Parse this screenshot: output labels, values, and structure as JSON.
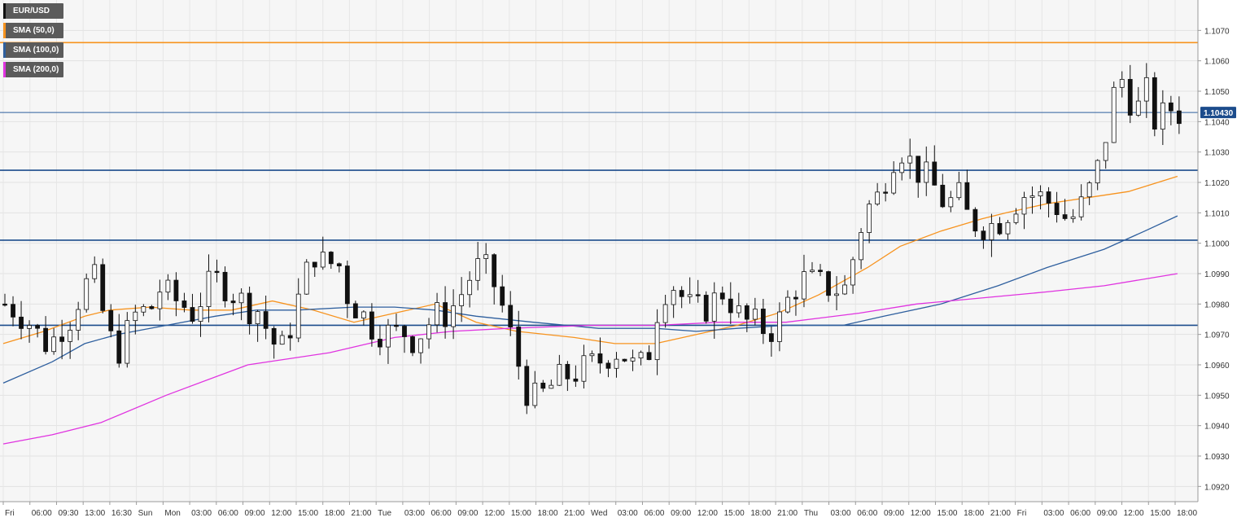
{
  "chart_data": {
    "type": "candlestick",
    "symbol": "EUR/USD",
    "ylim": [
      1.0915,
      1.108
    ],
    "y_ticks": [
      "1.1070",
      "1.1060",
      "1.1050",
      "1.1040",
      "1.1030",
      "1.1020",
      "1.1010",
      "1.1000",
      "1.0990",
      "1.0980",
      "1.0970",
      "1.0960",
      "1.0950",
      "1.0940",
      "1.0930",
      "1.0920"
    ],
    "x_ticks": [
      "Fri",
      "06:00",
      "09:30",
      "13:00",
      "16:30",
      "Sun",
      "Mon",
      "03:00",
      "06:00",
      "09:00",
      "12:00",
      "15:00",
      "18:00",
      "21:00",
      "Tue",
      "03:00",
      "06:00",
      "09:00",
      "12:00",
      "15:00",
      "18:00",
      "21:00",
      "Wed",
      "03:00",
      "06:00",
      "09:00",
      "12:00",
      "15:00",
      "18:00",
      "21:00",
      "Thu",
      "03:00",
      "06:00",
      "09:00",
      "12:00",
      "15:00",
      "18:00",
      "21:00",
      "Fri",
      "03:00",
      "06:00",
      "09:00",
      "12:00",
      "15:00",
      "18:00"
    ],
    "last_price": "1.10430",
    "last_price_value": 1.1043,
    "horizontal_levels": [
      {
        "value": 1.1066,
        "color": "#f7931e"
      },
      {
        "value": 1.1024,
        "color": "#1c4c8c"
      },
      {
        "value": 1.1001,
        "color": "#1c4c8c"
      },
      {
        "value": 1.0973,
        "color": "#1c4c8c"
      }
    ],
    "close_path": [
      1.098,
      1.0978,
      1.0975,
      1.097,
      1.0966,
      1.0972,
      1.0976,
      1.0985,
      1.0989,
      1.0975,
      1.0963,
      1.097,
      1.0978,
      1.0977,
      1.0985,
      1.0982,
      1.098,
      1.0977,
      1.0984,
      1.0988,
      1.0986,
      1.0982,
      1.0979,
      1.0978,
      1.0968,
      1.0965,
      1.0975,
      1.0988,
      1.0997,
      1.0992,
      1.0995,
      1.0982,
      1.0978,
      1.0973,
      1.0971,
      1.097,
      1.0971,
      1.0968,
      1.0973,
      1.0976,
      1.0977,
      1.0982,
      1.0989,
      1.0993,
      1.0988,
      1.0978,
      1.0965,
      1.0952,
      1.0948,
      1.0952,
      1.0955,
      1.0957,
      1.0958,
      1.096,
      1.0962,
      1.0965,
      1.0963,
      1.0958,
      1.0962,
      1.098,
      1.0988,
      1.0983,
      1.0978,
      1.0978,
      1.0981,
      1.0985,
      1.0977,
      1.0974,
      1.0973,
      1.0971,
      1.0975,
      1.0984,
      1.0988,
      1.0987,
      1.0986,
      1.0985,
      1.0985,
      1.1003,
      1.1012,
      1.1016,
      1.1028,
      1.1031,
      1.1025,
      1.1022,
      1.1018,
      1.1012,
      1.1016,
      1.1008,
      1.1006,
      1.1006,
      1.1008,
      1.1013,
      1.1016,
      1.1016,
      1.1014,
      1.1012,
      1.1007,
      1.1011,
      1.1018,
      1.1028,
      1.1048,
      1.1055,
      1.1042,
      1.105,
      1.1038,
      1.1045,
      1.1043
    ],
    "series": [
      {
        "name": "SMA (50,0)",
        "color": "#f7931e",
        "points": [
          [
            0,
            1.0967
          ],
          [
            5,
            1.0971
          ],
          [
            10,
            1.0976
          ],
          [
            13,
            1.0978
          ],
          [
            18,
            1.0979
          ],
          [
            23,
            1.0978
          ],
          [
            28,
            1.0978
          ],
          [
            33,
            1.0981
          ],
          [
            38,
            1.0978
          ],
          [
            43,
            1.0974
          ],
          [
            48,
            1.0977
          ],
          [
            53,
            1.098
          ],
          [
            58,
            1.0974
          ],
          [
            63,
            1.0971
          ],
          [
            70,
            1.0969
          ],
          [
            75,
            1.0967
          ],
          [
            80,
            1.0967
          ],
          [
            85,
            1.097
          ],
          [
            90,
            1.0973
          ],
          [
            95,
            1.0977
          ],
          [
            100,
            1.0983
          ],
          [
            106,
            1.0992
          ],
          [
            110,
            1.0999
          ],
          [
            115,
            1.1004
          ],
          [
            120,
            1.1008
          ],
          [
            123,
            1.101
          ],
          [
            128,
            1.1013
          ],
          [
            133,
            1.1015
          ],
          [
            138,
            1.1017
          ],
          [
            144,
            1.1022
          ]
        ]
      },
      {
        "name": "SMA (100,0)",
        "color": "#2e5f9e",
        "points": [
          [
            0,
            1.0954
          ],
          [
            6,
            1.0961
          ],
          [
            10,
            1.0967
          ],
          [
            14,
            1.097
          ],
          [
            20,
            1.0973
          ],
          [
            26,
            1.0976
          ],
          [
            31,
            1.0978
          ],
          [
            36,
            1.0978
          ],
          [
            43,
            1.0979
          ],
          [
            48,
            1.0979
          ],
          [
            53,
            1.0978
          ],
          [
            58,
            1.0976
          ],
          [
            65,
            1.0974
          ],
          [
            73,
            1.0972
          ],
          [
            80,
            1.0972
          ],
          [
            85,
            1.0971
          ],
          [
            90,
            1.0972
          ],
          [
            96,
            1.0973
          ],
          [
            103,
            1.0973
          ],
          [
            108,
            1.0976
          ],
          [
            115,
            1.098
          ],
          [
            122,
            1.0986
          ],
          [
            128,
            1.0992
          ],
          [
            135,
            1.0998
          ],
          [
            140,
            1.1004
          ],
          [
            144,
            1.1009
          ]
        ]
      },
      {
        "name": "SMA (200,0)",
        "color": "#e033e0",
        "points": [
          [
            0,
            1.0934
          ],
          [
            6,
            1.0937
          ],
          [
            12,
            1.0941
          ],
          [
            20,
            1.095
          ],
          [
            30,
            1.096
          ],
          [
            40,
            1.0964
          ],
          [
            48,
            1.0969
          ],
          [
            55,
            1.0971
          ],
          [
            62,
            1.0972
          ],
          [
            72,
            1.0973
          ],
          [
            80,
            1.0973
          ],
          [
            88,
            1.0974
          ],
          [
            96,
            1.0974
          ],
          [
            105,
            1.0977
          ],
          [
            112,
            1.098
          ],
          [
            120,
            1.0982
          ],
          [
            128,
            1.0984
          ],
          [
            135,
            1.0986
          ],
          [
            144,
            1.099
          ]
        ]
      }
    ]
  },
  "legend": [
    {
      "label": "EUR/USD",
      "color": "#111111"
    },
    {
      "label": "SMA (50,0)",
      "color": "#f7931e"
    },
    {
      "label": "SMA (100,0)",
      "color": "#2e5f9e"
    },
    {
      "label": "SMA (200,0)",
      "color": "#e033e0"
    }
  ]
}
